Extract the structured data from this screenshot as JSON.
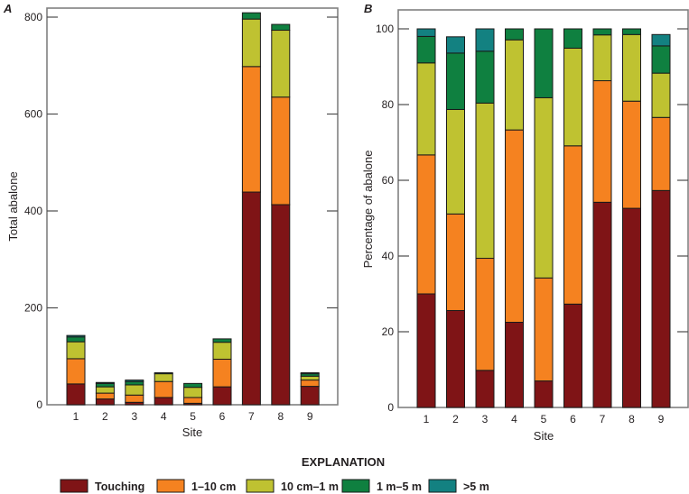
{
  "chart_data": [
    {
      "panel": "A",
      "type": "bar",
      "stacked": true,
      "title": "",
      "xlabel": "Site",
      "ylabel": "Total abalone",
      "ylim": [
        0,
        820
      ],
      "yticks": [
        0,
        200,
        400,
        600,
        800
      ],
      "categories": [
        "1",
        "2",
        "3",
        "4",
        "5",
        "6",
        "7",
        "8",
        "9"
      ],
      "series": [
        {
          "name": "Touching",
          "values": [
            43,
            12,
            5,
            15,
            3,
            37,
            439,
            413,
            38
          ]
        },
        {
          "name": "1–10 cm",
          "values": [
            52,
            12,
            15,
            33,
            12,
            57,
            259,
            222,
            13
          ]
        },
        {
          "name": "10 cm–1 m",
          "values": [
            35,
            13,
            21,
            16,
            21,
            35,
            98,
            138,
            8
          ]
        },
        {
          "name": "1 m–5 m",
          "values": [
            10,
            7,
            7,
            2,
            8,
            7,
            13,
            12,
            5
          ]
        },
        {
          "name": ">5 m",
          "values": [
            3,
            2,
            3,
            0,
            0,
            0,
            0,
            0,
            2
          ]
        }
      ],
      "grid": false
    },
    {
      "panel": "B",
      "type": "bar",
      "stacked": true,
      "title": "",
      "xlabel": "Site",
      "ylabel": "Percentage of abalone",
      "ylim": [
        0,
        105
      ],
      "yticks": [
        0,
        20,
        40,
        60,
        80,
        100
      ],
      "categories": [
        "1",
        "2",
        "3",
        "4",
        "5",
        "6",
        "7",
        "8",
        "9"
      ],
      "series": [
        {
          "name": "Touching",
          "values": [
            30.0,
            25.6,
            9.8,
            22.5,
            7.0,
            27.3,
            54.2,
            52.6,
            57.3
          ]
        },
        {
          "name": "1–10 cm",
          "values": [
            36.7,
            25.5,
            29.6,
            50.8,
            27.2,
            41.8,
            32.1,
            28.3,
            19.3
          ]
        },
        {
          "name": "10 cm–1 m",
          "values": [
            24.3,
            27.6,
            41.0,
            23.8,
            47.6,
            25.8,
            12.1,
            17.6,
            11.7
          ]
        },
        {
          "name": "1 m–5 m",
          "values": [
            7.0,
            14.9,
            13.7,
            2.9,
            18.2,
            5.1,
            1.6,
            1.5,
            7.2
          ]
        },
        {
          "name": ">5 m",
          "values": [
            2.0,
            4.3,
            5.9,
            0,
            0,
            0,
            0,
            0,
            3.0
          ]
        }
      ],
      "grid": false
    }
  ],
  "legend": {
    "title": "EXPLANATION",
    "placement": "bottom",
    "items": [
      {
        "label": "Touching",
        "color": "#7f1416"
      },
      {
        "label": "1–10 cm",
        "color": "#f58220"
      },
      {
        "label": "10 cm–1 m",
        "color": "#bfc231"
      },
      {
        "label": "1 m–5 m",
        "color": "#0f8040"
      },
      {
        "label": ">5 m",
        "color": "#138181"
      }
    ]
  },
  "panels": {
    "a_letter": "A",
    "b_letter": "B"
  }
}
